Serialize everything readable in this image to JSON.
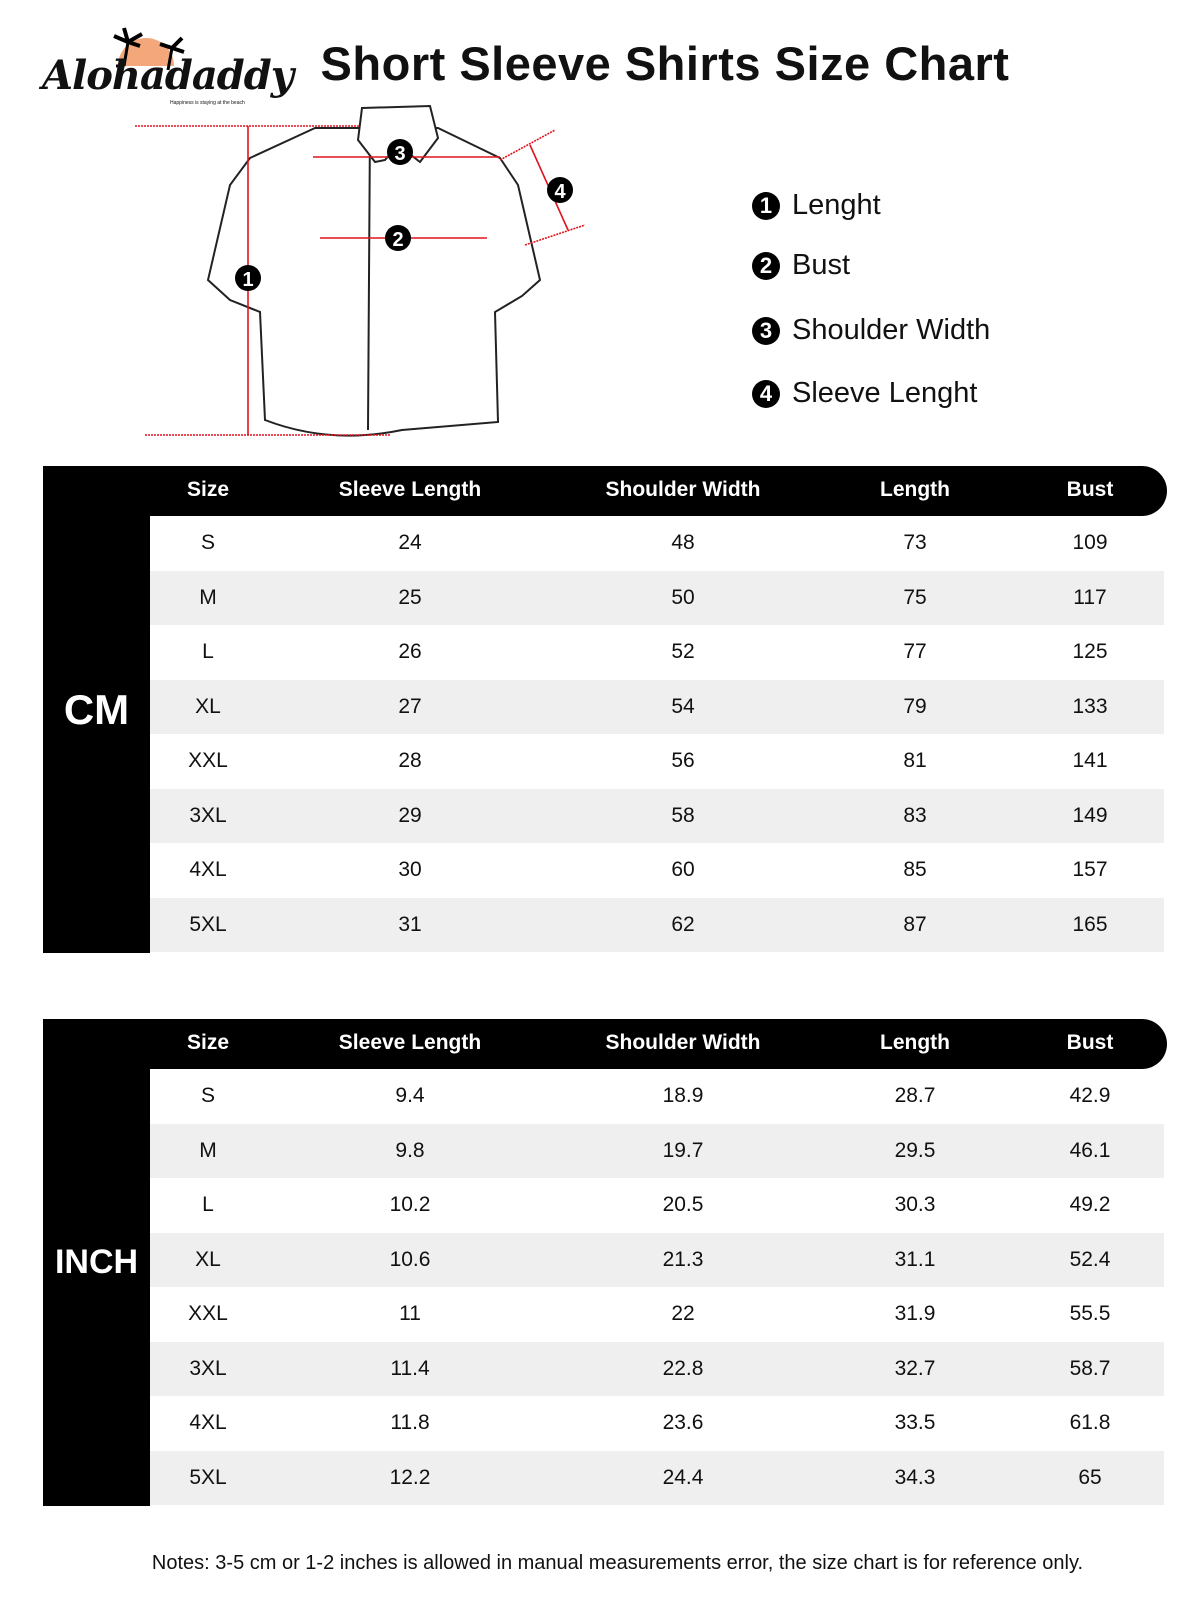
{
  "logo": {
    "brand": "Alohadaddy",
    "tagline": "Happiness is staying at the beach"
  },
  "title": "Short Sleeve Shirts Size Chart",
  "diagram": {
    "markers": [
      "1",
      "2",
      "3",
      "4"
    ]
  },
  "legend": [
    {
      "num": "1",
      "label": "Lenght"
    },
    {
      "num": "2",
      "label": "Bust"
    },
    {
      "num": "3",
      "label": "Shoulder Width"
    },
    {
      "num": "4",
      "label": "Sleeve Lenght"
    }
  ],
  "columns": [
    "Size",
    "Sleeve Length",
    "Shoulder Width",
    "Length",
    "Bust"
  ],
  "tables": [
    {
      "unit": "CM",
      "rows": [
        [
          "S",
          "24",
          "48",
          "73",
          "109"
        ],
        [
          "M",
          "25",
          "50",
          "75",
          "117"
        ],
        [
          "L",
          "26",
          "52",
          "77",
          "125"
        ],
        [
          "XL",
          "27",
          "54",
          "79",
          "133"
        ],
        [
          "XXL",
          "28",
          "56",
          "81",
          "141"
        ],
        [
          "3XL",
          "29",
          "58",
          "83",
          "149"
        ],
        [
          "4XL",
          "30",
          "60",
          "85",
          "157"
        ],
        [
          "5XL",
          "31",
          "62",
          "87",
          "165"
        ]
      ]
    },
    {
      "unit": "INCH",
      "rows": [
        [
          "S",
          "9.4",
          "18.9",
          "28.7",
          "42.9"
        ],
        [
          "M",
          "9.8",
          "19.7",
          "29.5",
          "46.1"
        ],
        [
          "L",
          "10.2",
          "20.5",
          "30.3",
          "49.2"
        ],
        [
          "XL",
          "10.6",
          "21.3",
          "31.1",
          "52.4"
        ],
        [
          "XXL",
          "11",
          "22",
          "31.9",
          "55.5"
        ],
        [
          "3XL",
          "11.4",
          "22.8",
          "32.7",
          "58.7"
        ],
        [
          "4XL",
          "11.8",
          "23.6",
          "33.5",
          "61.8"
        ],
        [
          "5XL",
          "12.2",
          "24.4",
          "34.3",
          "65"
        ]
      ]
    }
  ],
  "notes": "Notes: 3-5 cm or 1-2 inches is allowed in manual measurements error, the size chart is for reference only.",
  "colors": {
    "header": "#000000",
    "alt_row": "#efefef",
    "measure_line": "#e0141e",
    "logo_sun": "#f4a77a"
  }
}
